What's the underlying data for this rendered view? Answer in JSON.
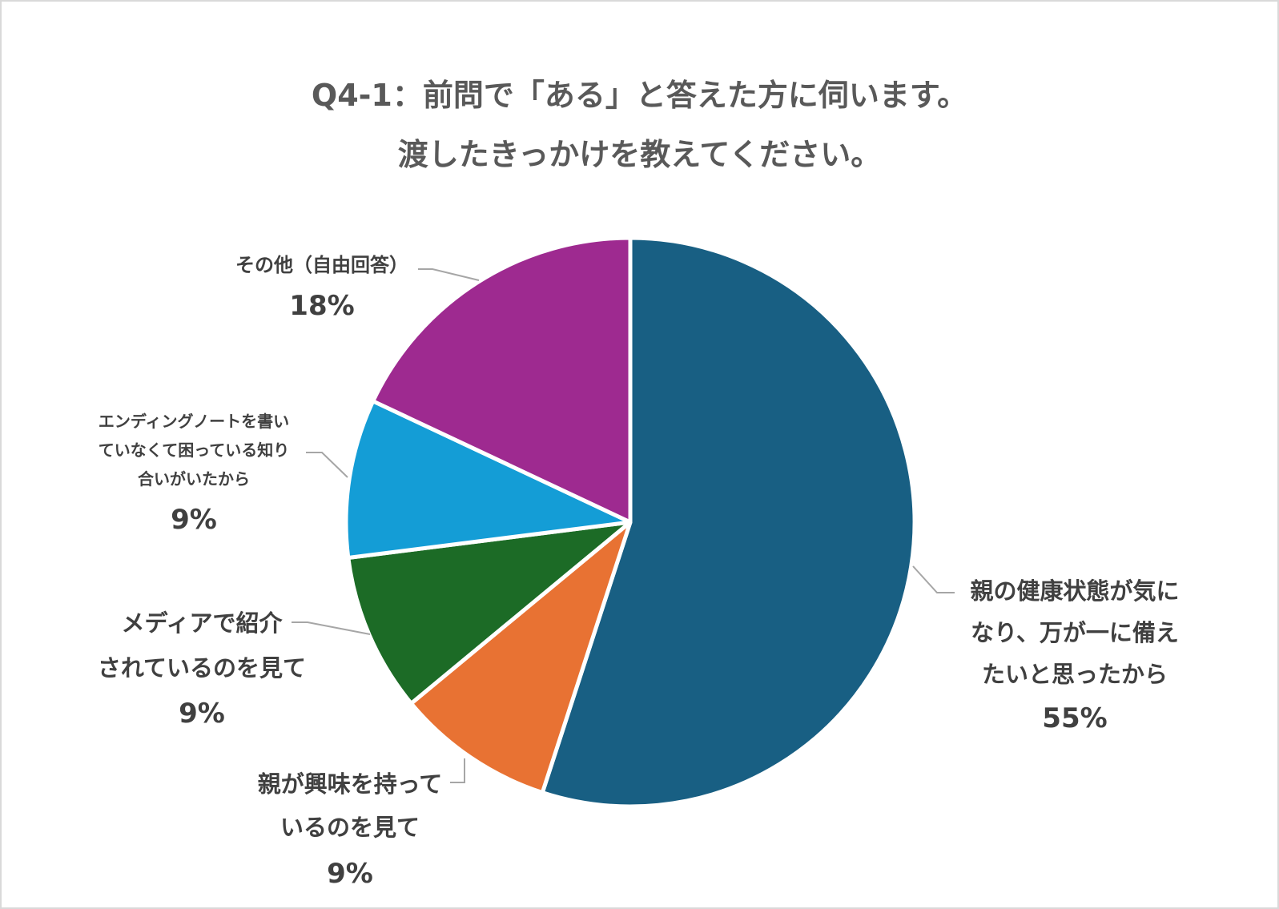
{
  "chart_data": {
    "type": "pie",
    "title": [
      "Q4-1：前問で「ある」と答えた方に伺います。",
      "渡したきっかけを教えてください。"
    ],
    "slices": [
      {
        "label": "親の健康状態が気に\nなり、万が一に備え\nたいと思ったから",
        "percent_label": "55%",
        "value": 55,
        "color": "#185f83"
      },
      {
        "label": "親が興味を持って\nいるのを見て",
        "percent_label": "9%",
        "value": 9,
        "color": "#e87233"
      },
      {
        "label": "メディアで紹介\nされているのを見て",
        "percent_label": "9%",
        "value": 9,
        "color": "#1c6b26"
      },
      {
        "label": "エンディングノートを書い\nていなくて困っている知り\n合いがいたから",
        "percent_label": "9%",
        "value": 9,
        "color": "#149dd6"
      },
      {
        "label": "その他（自由回答）",
        "percent_label": "18%",
        "value": 18,
        "color": "#9e2a90"
      }
    ]
  }
}
